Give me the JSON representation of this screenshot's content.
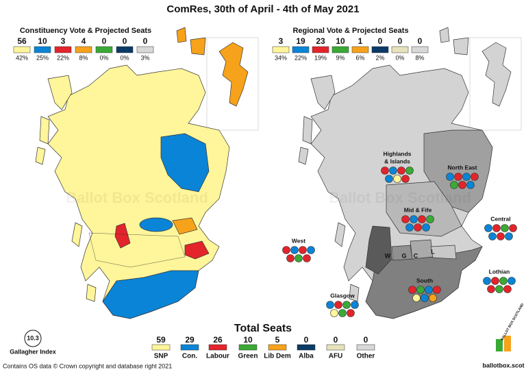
{
  "title": "ComRes, 30th of April - 4th of May 2021",
  "colors": {
    "snp": "#fff59a",
    "con": "#0a84d6",
    "lab": "#e3242b",
    "grn": "#3aa935",
    "ld": "#f7a21b",
    "alba": "#0b3a66",
    "afu": "#e6e2bc",
    "oth": "#d8d8d8"
  },
  "constituency": {
    "heading": "Constituency Vote & Projected Seats",
    "columns": [
      {
        "seats": 56,
        "share": "42%",
        "party": "snp"
      },
      {
        "seats": 10,
        "share": "25%",
        "party": "con"
      },
      {
        "seats": 3,
        "share": "22%",
        "party": "lab"
      },
      {
        "seats": 4,
        "share": "8%",
        "party": "ld"
      },
      {
        "seats": 0,
        "share": "0%",
        "party": "grn"
      },
      {
        "seats": 0,
        "share": "0%",
        "party": "alba"
      },
      {
        "seats": 0,
        "share": "3%",
        "party": "oth"
      }
    ]
  },
  "regional": {
    "heading": "Regional Vote & Projected Seats",
    "columns": [
      {
        "seats": 3,
        "share": "34%",
        "party": "snp"
      },
      {
        "seats": 19,
        "share": "22%",
        "party": "con"
      },
      {
        "seats": 23,
        "share": "19%",
        "party": "lab"
      },
      {
        "seats": 10,
        "share": "9%",
        "party": "grn"
      },
      {
        "seats": 1,
        "share": "6%",
        "party": "ld"
      },
      {
        "seats": 0,
        "share": "2%",
        "party": "alba"
      },
      {
        "seats": 0,
        "share": "0%",
        "party": "afu"
      },
      {
        "seats": 0,
        "share": "8%",
        "party": "oth"
      }
    ],
    "regions": [
      {
        "label_lines": [
          "Highlands",
          "& Islands"
        ],
        "seats": [
          "lab",
          "con",
          "lab",
          "grn",
          "con",
          "snp",
          "lab"
        ]
      },
      {
        "label_lines": [
          "North East"
        ],
        "seats": [
          "con",
          "lab",
          "con",
          "lab",
          "grn",
          "lab",
          "con"
        ]
      },
      {
        "label_lines": [
          "Mid & Fife"
        ],
        "seats": [
          "lab",
          "con",
          "lab",
          "grn",
          "con",
          "lab",
          "con"
        ]
      },
      {
        "label_lines": [
          "Central"
        ],
        "seats": [
          "con",
          "lab",
          "grn",
          "lab",
          "con",
          "lab",
          "con"
        ]
      },
      {
        "label_lines": [
          "West"
        ],
        "seats": [
          "lab",
          "con",
          "lab",
          "con",
          "lab",
          "grn",
          "lab"
        ]
      },
      {
        "label_lines": [
          "Glasgow"
        ],
        "seats": [
          "con",
          "lab",
          "grn",
          "con",
          "snp",
          "grn",
          "lab"
        ]
      },
      {
        "label_lines": [
          "South"
        ],
        "seats": [
          "lab",
          "grn",
          "con",
          "lab",
          "snp",
          "con",
          "ld"
        ]
      },
      {
        "label_lines": [
          "Lothian"
        ],
        "seats": [
          "con",
          "lab",
          "grn",
          "con",
          "lab",
          "grn",
          "lab"
        ]
      }
    ],
    "map_letters": [
      "W",
      "G",
      "C",
      "L"
    ]
  },
  "total": {
    "heading": "Total Seats",
    "columns": [
      {
        "seats": 59,
        "name": "SNP",
        "party": "snp"
      },
      {
        "seats": 29,
        "name": "Con.",
        "party": "con"
      },
      {
        "seats": 26,
        "name": "Labour",
        "party": "lab"
      },
      {
        "seats": 10,
        "name": "Green",
        "party": "grn"
      },
      {
        "seats": 5,
        "name": "Lib Dem",
        "party": "ld"
      },
      {
        "seats": 0,
        "name": "Alba",
        "party": "alba"
      },
      {
        "seats": 0,
        "name": "AFU",
        "party": "afu"
      },
      {
        "seats": 0,
        "name": "Other",
        "party": "oth"
      }
    ]
  },
  "gallagher": {
    "value": 10.3,
    "label": "Gallagher Index"
  },
  "watermark": "Ballot Box Scotland",
  "logo": "BALLOT BOX SCOTLAND",
  "site": "ballotbox.scot",
  "footer": "Contains OS data © Crown copyright and database right 2021"
}
